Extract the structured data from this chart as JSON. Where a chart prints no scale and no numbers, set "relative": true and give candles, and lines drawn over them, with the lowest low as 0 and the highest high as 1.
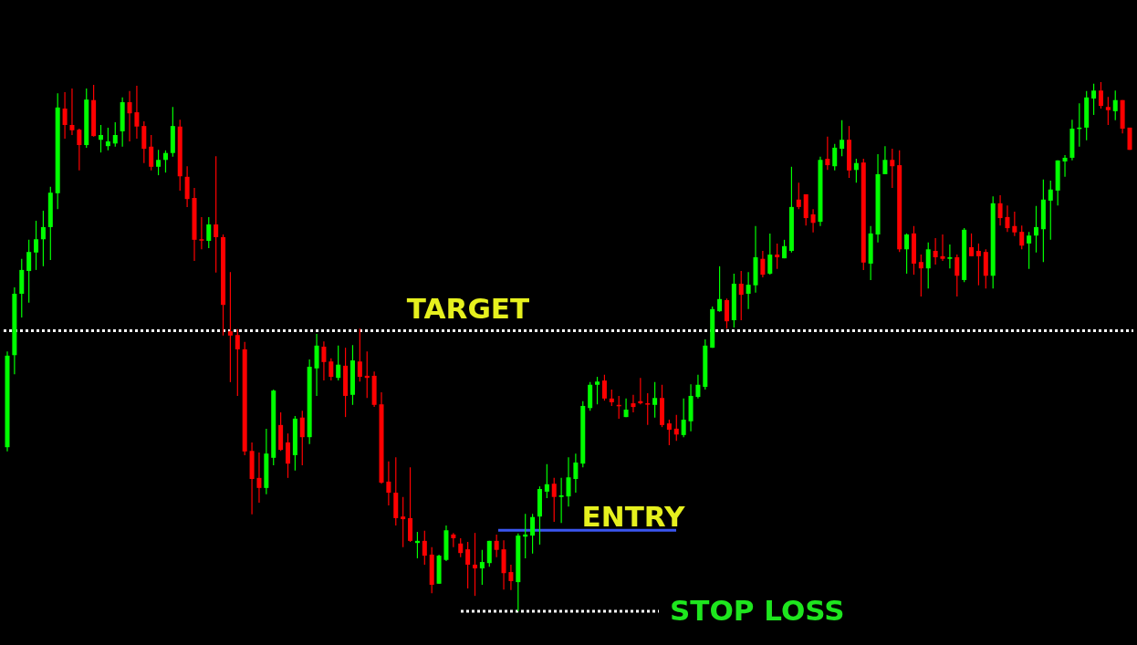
{
  "chart_data": {
    "type": "candlestick",
    "relative": true,
    "categories": [
      null,
      null,
      null,
      null,
      null,
      null,
      null,
      null,
      null,
      null,
      null,
      null,
      null,
      null,
      null,
      null,
      null,
      null,
      null,
      null,
      null,
      null,
      null,
      null,
      null,
      null,
      null,
      null,
      null,
      null,
      null,
      null,
      null,
      null,
      null,
      null,
      null,
      null,
      null,
      null,
      null,
      null,
      null,
      null,
      null,
      null,
      null,
      null,
      null,
      null,
      null,
      null,
      null,
      null,
      null,
      null,
      null,
      null,
      null,
      null,
      null,
      null,
      null,
      null,
      null,
      null,
      null,
      null,
      null,
      null,
      null,
      null,
      null,
      null,
      null,
      null,
      null,
      null,
      null,
      null,
      null,
      null,
      null,
      null,
      null,
      null,
      null,
      null,
      null,
      null,
      null,
      null,
      null,
      null,
      null,
      null,
      null,
      null,
      null,
      null,
      null,
      null,
      null,
      null,
      null,
      null,
      null,
      null,
      null,
      null,
      null,
      null,
      null,
      null,
      null,
      null,
      null,
      null,
      null,
      null,
      null,
      null,
      null,
      null,
      null,
      null,
      null,
      null,
      null,
      null,
      null,
      null,
      null,
      null,
      null,
      null,
      null,
      null,
      null,
      null,
      null,
      null,
      null,
      null,
      null,
      null,
      null,
      null,
      null,
      null,
      null,
      null,
      null,
      null,
      null,
      null,
      null
    ],
    "ohlc": [
      [
        0.31,
        0.491,
        0.302,
        0.483
      ],
      [
        0.484,
        0.612,
        0.448,
        0.6
      ],
      [
        0.6,
        0.666,
        0.555,
        0.645
      ],
      [
        0.643,
        0.702,
        0.583,
        0.679
      ],
      [
        0.678,
        0.738,
        0.645,
        0.703
      ],
      [
        0.703,
        0.757,
        0.652,
        0.726
      ],
      [
        0.726,
        0.802,
        0.664,
        0.791
      ],
      [
        0.79,
        0.979,
        0.76,
        0.952
      ],
      [
        0.95,
        0.981,
        0.893,
        0.919
      ],
      [
        0.919,
        0.988,
        0.9,
        0.909
      ],
      [
        0.91,
        0.912,
        0.833,
        0.881
      ],
      [
        0.881,
        0.988,
        0.876,
        0.967
      ],
      [
        0.966,
        0.995,
        0.897,
        0.898
      ],
      [
        0.891,
        0.919,
        0.867,
        0.9
      ],
      [
        0.879,
        0.914,
        0.871,
        0.888
      ],
      [
        0.884,
        0.924,
        0.878,
        0.9
      ],
      [
        0.907,
        0.971,
        0.878,
        0.962
      ],
      [
        0.962,
        0.983,
        0.888,
        0.941
      ],
      [
        0.943,
        0.993,
        0.893,
        0.916
      ],
      [
        0.917,
        0.926,
        0.847,
        0.874
      ],
      [
        0.878,
        0.9,
        0.833,
        0.84
      ],
      [
        0.84,
        0.872,
        0.824,
        0.853
      ],
      [
        0.853,
        0.871,
        0.829,
        0.866
      ],
      [
        0.866,
        0.953,
        0.859,
        0.917
      ],
      [
        0.916,
        0.929,
        0.795,
        0.822
      ],
      [
        0.821,
        0.841,
        0.764,
        0.779
      ],
      [
        0.781,
        0.8,
        0.662,
        0.702
      ],
      [
        0.703,
        0.745,
        0.684,
        0.702
      ],
      [
        0.7,
        0.745,
        0.686,
        0.731
      ],
      [
        0.731,
        0.86,
        0.64,
        0.707
      ],
      [
        0.707,
        0.712,
        0.521,
        0.579
      ],
      [
        0.529,
        0.641,
        0.433,
        0.521
      ],
      [
        0.522,
        0.533,
        0.407,
        0.495
      ],
      [
        0.495,
        0.509,
        0.295,
        0.302
      ],
      [
        0.303,
        0.319,
        0.183,
        0.25
      ],
      [
        0.252,
        0.3,
        0.205,
        0.233
      ],
      [
        0.233,
        0.345,
        0.221,
        0.298
      ],
      [
        0.29,
        0.419,
        0.276,
        0.417
      ],
      [
        0.352,
        0.376,
        0.303,
        0.305
      ],
      [
        0.319,
        0.336,
        0.252,
        0.279
      ],
      [
        0.295,
        0.369,
        0.266,
        0.364
      ],
      [
        0.366,
        0.379,
        0.276,
        0.329
      ],
      [
        0.329,
        0.476,
        0.316,
        0.462
      ],
      [
        0.459,
        0.524,
        0.407,
        0.502
      ],
      [
        0.5,
        0.51,
        0.436,
        0.471
      ],
      [
        0.472,
        0.478,
        0.436,
        0.443
      ],
      [
        0.441,
        0.502,
        0.436,
        0.466
      ],
      [
        0.464,
        0.498,
        0.367,
        0.407
      ],
      [
        0.409,
        0.503,
        0.39,
        0.474
      ],
      [
        0.472,
        0.534,
        0.434,
        0.443
      ],
      [
        0.445,
        0.491,
        0.403,
        0.441
      ],
      [
        0.445,
        0.453,
        0.386,
        0.39
      ],
      [
        0.391,
        0.414,
        0.241,
        0.243
      ],
      [
        0.245,
        0.283,
        0.2,
        0.224
      ],
      [
        0.224,
        0.291,
        0.162,
        0.176
      ],
      [
        0.179,
        0.216,
        0.121,
        0.174
      ],
      [
        0.176,
        0.272,
        0.131,
        0.133
      ],
      [
        0.129,
        0.15,
        0.1,
        0.133
      ],
      [
        0.133,
        0.152,
        0.088,
        0.105
      ],
      [
        0.107,
        0.121,
        0.034,
        0.05
      ],
      [
        0.052,
        0.107,
        0.052,
        0.105
      ],
      [
        0.097,
        0.162,
        0.095,
        0.153
      ],
      [
        0.145,
        0.148,
        0.121,
        0.138
      ],
      [
        0.128,
        0.138,
        0.102,
        0.11
      ],
      [
        0.117,
        0.131,
        0.043,
        0.088
      ],
      [
        0.088,
        0.148,
        0.029,
        0.081
      ],
      [
        0.081,
        0.116,
        0.05,
        0.093
      ],
      [
        0.091,
        0.133,
        0.084,
        0.133
      ],
      [
        0.133,
        0.145,
        0.102,
        0.116
      ],
      [
        0.117,
        0.134,
        0.041,
        0.072
      ],
      [
        0.074,
        0.088,
        0.04,
        0.057
      ],
      [
        0.055,
        0.147,
        0,
        0.143
      ],
      [
        0.141,
        0.184,
        0.1,
        0.145
      ],
      [
        0.143,
        0.184,
        0.109,
        0.178
      ],
      [
        0.179,
        0.236,
        0.126,
        0.231
      ],
      [
        0.226,
        0.278,
        0.214,
        0.24
      ],
      [
        0.241,
        0.252,
        0.169,
        0.216
      ],
      [
        0.216,
        0.252,
        0.167,
        0.219
      ],
      [
        0.217,
        0.291,
        0.198,
        0.253
      ],
      [
        0.25,
        0.298,
        0.224,
        0.281
      ],
      [
        0.279,
        0.397,
        0.272,
        0.388
      ],
      [
        0.384,
        0.433,
        0.379,
        0.428
      ],
      [
        0.428,
        0.443,
        0.391,
        0.434
      ],
      [
        0.436,
        0.447,
        0.398,
        0.402
      ],
      [
        0.402,
        0.419,
        0.388,
        0.395
      ],
      [
        0.39,
        0.407,
        0.364,
        0.388
      ],
      [
        0.367,
        0.402,
        0.367,
        0.381
      ],
      [
        0.393,
        0.409,
        0.376,
        0.386
      ],
      [
        0.397,
        0.441,
        0.391,
        0.393
      ],
      [
        0.393,
        0.412,
        0.352,
        0.391
      ],
      [
        0.39,
        0.433,
        0.366,
        0.403
      ],
      [
        0.403,
        0.428,
        0.348,
        0.352
      ],
      [
        0.355,
        0.362,
        0.314,
        0.343
      ],
      [
        0.345,
        0.371,
        0.322,
        0.334
      ],
      [
        0.333,
        0.402,
        0.329,
        0.362
      ],
      [
        0.359,
        0.429,
        0.34,
        0.407
      ],
      [
        0.405,
        0.447,
        0.402,
        0.428
      ],
      [
        0.424,
        0.514,
        0.419,
        0.502
      ],
      [
        0.498,
        0.576,
        0.498,
        0.571
      ],
      [
        0.567,
        0.652,
        0.566,
        0.59
      ],
      [
        0.588,
        0.591,
        0.534,
        0.548
      ],
      [
        0.55,
        0.638,
        0.536,
        0.619
      ],
      [
        0.619,
        0.643,
        0.55,
        0.598
      ],
      [
        0.6,
        0.641,
        0.571,
        0.617
      ],
      [
        0.616,
        0.728,
        0.602,
        0.669
      ],
      [
        0.666,
        0.681,
        0.631,
        0.636
      ],
      [
        0.638,
        0.714,
        0.636,
        0.674
      ],
      [
        0.674,
        0.695,
        0.647,
        0.669
      ],
      [
        0.667,
        0.702,
        0.667,
        0.69
      ],
      [
        0.681,
        0.84,
        0.678,
        0.764
      ],
      [
        0.778,
        0.81,
        0.76,
        0.764
      ],
      [
        0.788,
        0.788,
        0.729,
        0.743
      ],
      [
        0.75,
        0.76,
        0.716,
        0.734
      ],
      [
        0.736,
        0.859,
        0.728,
        0.853
      ],
      [
        0.855,
        0.897,
        0.834,
        0.843
      ],
      [
        0.841,
        0.883,
        0.833,
        0.876
      ],
      [
        0.874,
        0.928,
        0.86,
        0.891
      ],
      [
        0.891,
        0.917,
        0.819,
        0.833
      ],
      [
        0.834,
        0.855,
        0.81,
        0.847
      ],
      [
        0.848,
        0.855,
        0.645,
        0.659
      ],
      [
        0.657,
        0.728,
        0.626,
        0.714
      ],
      [
        0.712,
        0.864,
        0.697,
        0.826
      ],
      [
        0.826,
        0.879,
        0.826,
        0.853
      ],
      [
        0.853,
        0.874,
        0.8,
        0.841
      ],
      [
        0.843,
        0.871,
        0.679,
        0.684
      ],
      [
        0.684,
        0.714,
        0.638,
        0.712
      ],
      [
        0.714,
        0.728,
        0.636,
        0.657
      ],
      [
        0.66,
        0.674,
        0.595,
        0.648
      ],
      [
        0.648,
        0.697,
        0.61,
        0.684
      ],
      [
        0.681,
        0.705,
        0.655,
        0.669
      ],
      [
        0.671,
        0.712,
        0.662,
        0.666
      ],
      [
        0.666,
        0.693,
        0.648,
        0.669
      ],
      [
        0.669,
        0.674,
        0.595,
        0.634
      ],
      [
        0.626,
        0.724,
        0.622,
        0.721
      ],
      [
        0.688,
        0.714,
        0.671,
        0.671
      ],
      [
        0.681,
        0.695,
        0.616,
        0.671
      ],
      [
        0.679,
        0.684,
        0.61,
        0.634
      ],
      [
        0.634,
        0.784,
        0.61,
        0.771
      ],
      [
        0.771,
        0.786,
        0.729,
        0.743
      ],
      [
        0.745,
        0.767,
        0.717,
        0.724
      ],
      [
        0.728,
        0.755,
        0.709,
        0.716
      ],
      [
        0.717,
        0.729,
        0.684,
        0.691
      ],
      [
        0.695,
        0.717,
        0.647,
        0.71
      ],
      [
        0.71,
        0.766,
        0.678,
        0.726
      ],
      [
        0.722,
        0.816,
        0.66,
        0.778
      ],
      [
        0.776,
        0.814,
        0.702,
        0.797
      ],
      [
        0.795,
        0.852,
        0.767,
        0.852
      ],
      [
        0.85,
        0.862,
        0.821,
        0.857
      ],
      [
        0.857,
        0.929,
        0.852,
        0.912
      ],
      [
        0.912,
        0.96,
        0.878,
        0.914
      ],
      [
        0.914,
        0.983,
        0.89,
        0.971
      ],
      [
        0.969,
        0.997,
        0.938,
        0.984
      ],
      [
        0.984,
        1,
        0.95,
        0.955
      ],
      [
        0.953,
        0.972,
        0.919,
        0.947
      ],
      [
        0.945,
        0.984,
        0.928,
        0.966
      ],
      [
        0.966,
        0.966,
        0.903,
        0.912
      ],
      [
        0.914,
        0.914,
        0.872,
        0.872
      ]
    ],
    "colors": [
      "#00ff00",
      "#00ff00",
      "#00ff00",
      "#00ff00",
      "#00ff00",
      "#00ff00",
      "#00ff00",
      "#00ff00",
      "#ff0000",
      "#ff0000",
      "#ff0000",
      "#00ff00",
      "#ff0000",
      "#00ff00",
      "#00ff00",
      "#00ff00",
      "#00ff00",
      "#ff0000",
      "#ff0000",
      "#ff0000",
      "#ff0000",
      "#00ff00",
      "#00ff00",
      "#00ff00",
      "#ff0000",
      "#ff0000",
      "#ff0000",
      "#ff0000",
      "#00ff00",
      "#ff0000",
      "#ff0000",
      "#ff0000",
      "#ff0000",
      "#ff0000",
      "#ff0000",
      "#ff0000",
      "#00ff00",
      "#00ff00",
      "#ff0000",
      "#ff0000",
      "#00ff00",
      "#ff0000",
      "#00ff00",
      "#00ff00",
      "#ff0000",
      "#ff0000",
      "#00ff00",
      "#ff0000",
      "#00ff00",
      "#ff0000",
      "#ff0000",
      "#ff0000",
      "#ff0000",
      "#ff0000",
      "#ff0000",
      "#ff0000",
      "#ff0000",
      "#00ff00",
      "#ff0000",
      "#ff0000",
      "#00ff00",
      "#00ff00",
      "#ff0000",
      "#ff0000",
      "#ff0000",
      "#ff0000",
      "#00ff00",
      "#00ff00",
      "#ff0000",
      "#ff0000",
      "#ff0000",
      "#00ff00",
      "#00ff00",
      "#00ff00",
      "#00ff00",
      "#00ff00",
      "#ff0000",
      "#00ff00",
      "#00ff00",
      "#00ff00",
      "#00ff00",
      "#00ff00",
      "#00ff00",
      "#ff0000",
      "#ff0000",
      "#ff0000",
      "#00ff00",
      "#ff0000",
      "#ff0000",
      "#ff0000",
      "#00ff00",
      "#ff0000",
      "#ff0000",
      "#ff0000",
      "#00ff00",
      "#00ff00",
      "#00ff00",
      "#00ff00",
      "#00ff00",
      "#00ff00",
      "#ff0000",
      "#00ff00",
      "#ff0000",
      "#00ff00",
      "#00ff00",
      "#ff0000",
      "#00ff00",
      "#ff0000",
      "#00ff00",
      "#00ff00",
      "#ff0000",
      "#ff0000",
      "#ff0000",
      "#00ff00",
      "#ff0000",
      "#00ff00",
      "#00ff00",
      "#ff0000",
      "#00ff00",
      "#ff0000",
      "#00ff00",
      "#00ff00",
      "#00ff00",
      "#ff0000",
      "#ff0000",
      "#00ff00",
      "#ff0000",
      "#ff0000",
      "#00ff00",
      "#ff0000",
      "#ff0000",
      "#00ff00",
      "#ff0000",
      "#00ff00",
      "#ff0000",
      "#ff0000",
      "#ff0000",
      "#00ff00",
      "#ff0000",
      "#ff0000",
      "#ff0000",
      "#ff0000",
      "#00ff00",
      "#00ff00",
      "#00ff00",
      "#00ff00",
      "#00ff00",
      "#00ff00",
      "#00ff00",
      "#00ff00",
      "#00ff00",
      "#00ff00",
      "#ff0000",
      "#ff0000",
      "#00ff00",
      "#ff0000",
      "#ff0000"
    ],
    "ref_lines": [
      {
        "axis": "y",
        "value": 0.53,
        "label": "TARGET",
        "color": "#ffffff",
        "line_style": "dotted"
      },
      {
        "axis": "y",
        "value": 0.153,
        "label": "ENTRY",
        "color": "#3a55f0",
        "line_style": "solid"
      },
      {
        "axis": "y",
        "value": 0,
        "label": "STOP LOSS",
        "color": "#ffffff",
        "line_style": "dotted"
      }
    ]
  }
}
